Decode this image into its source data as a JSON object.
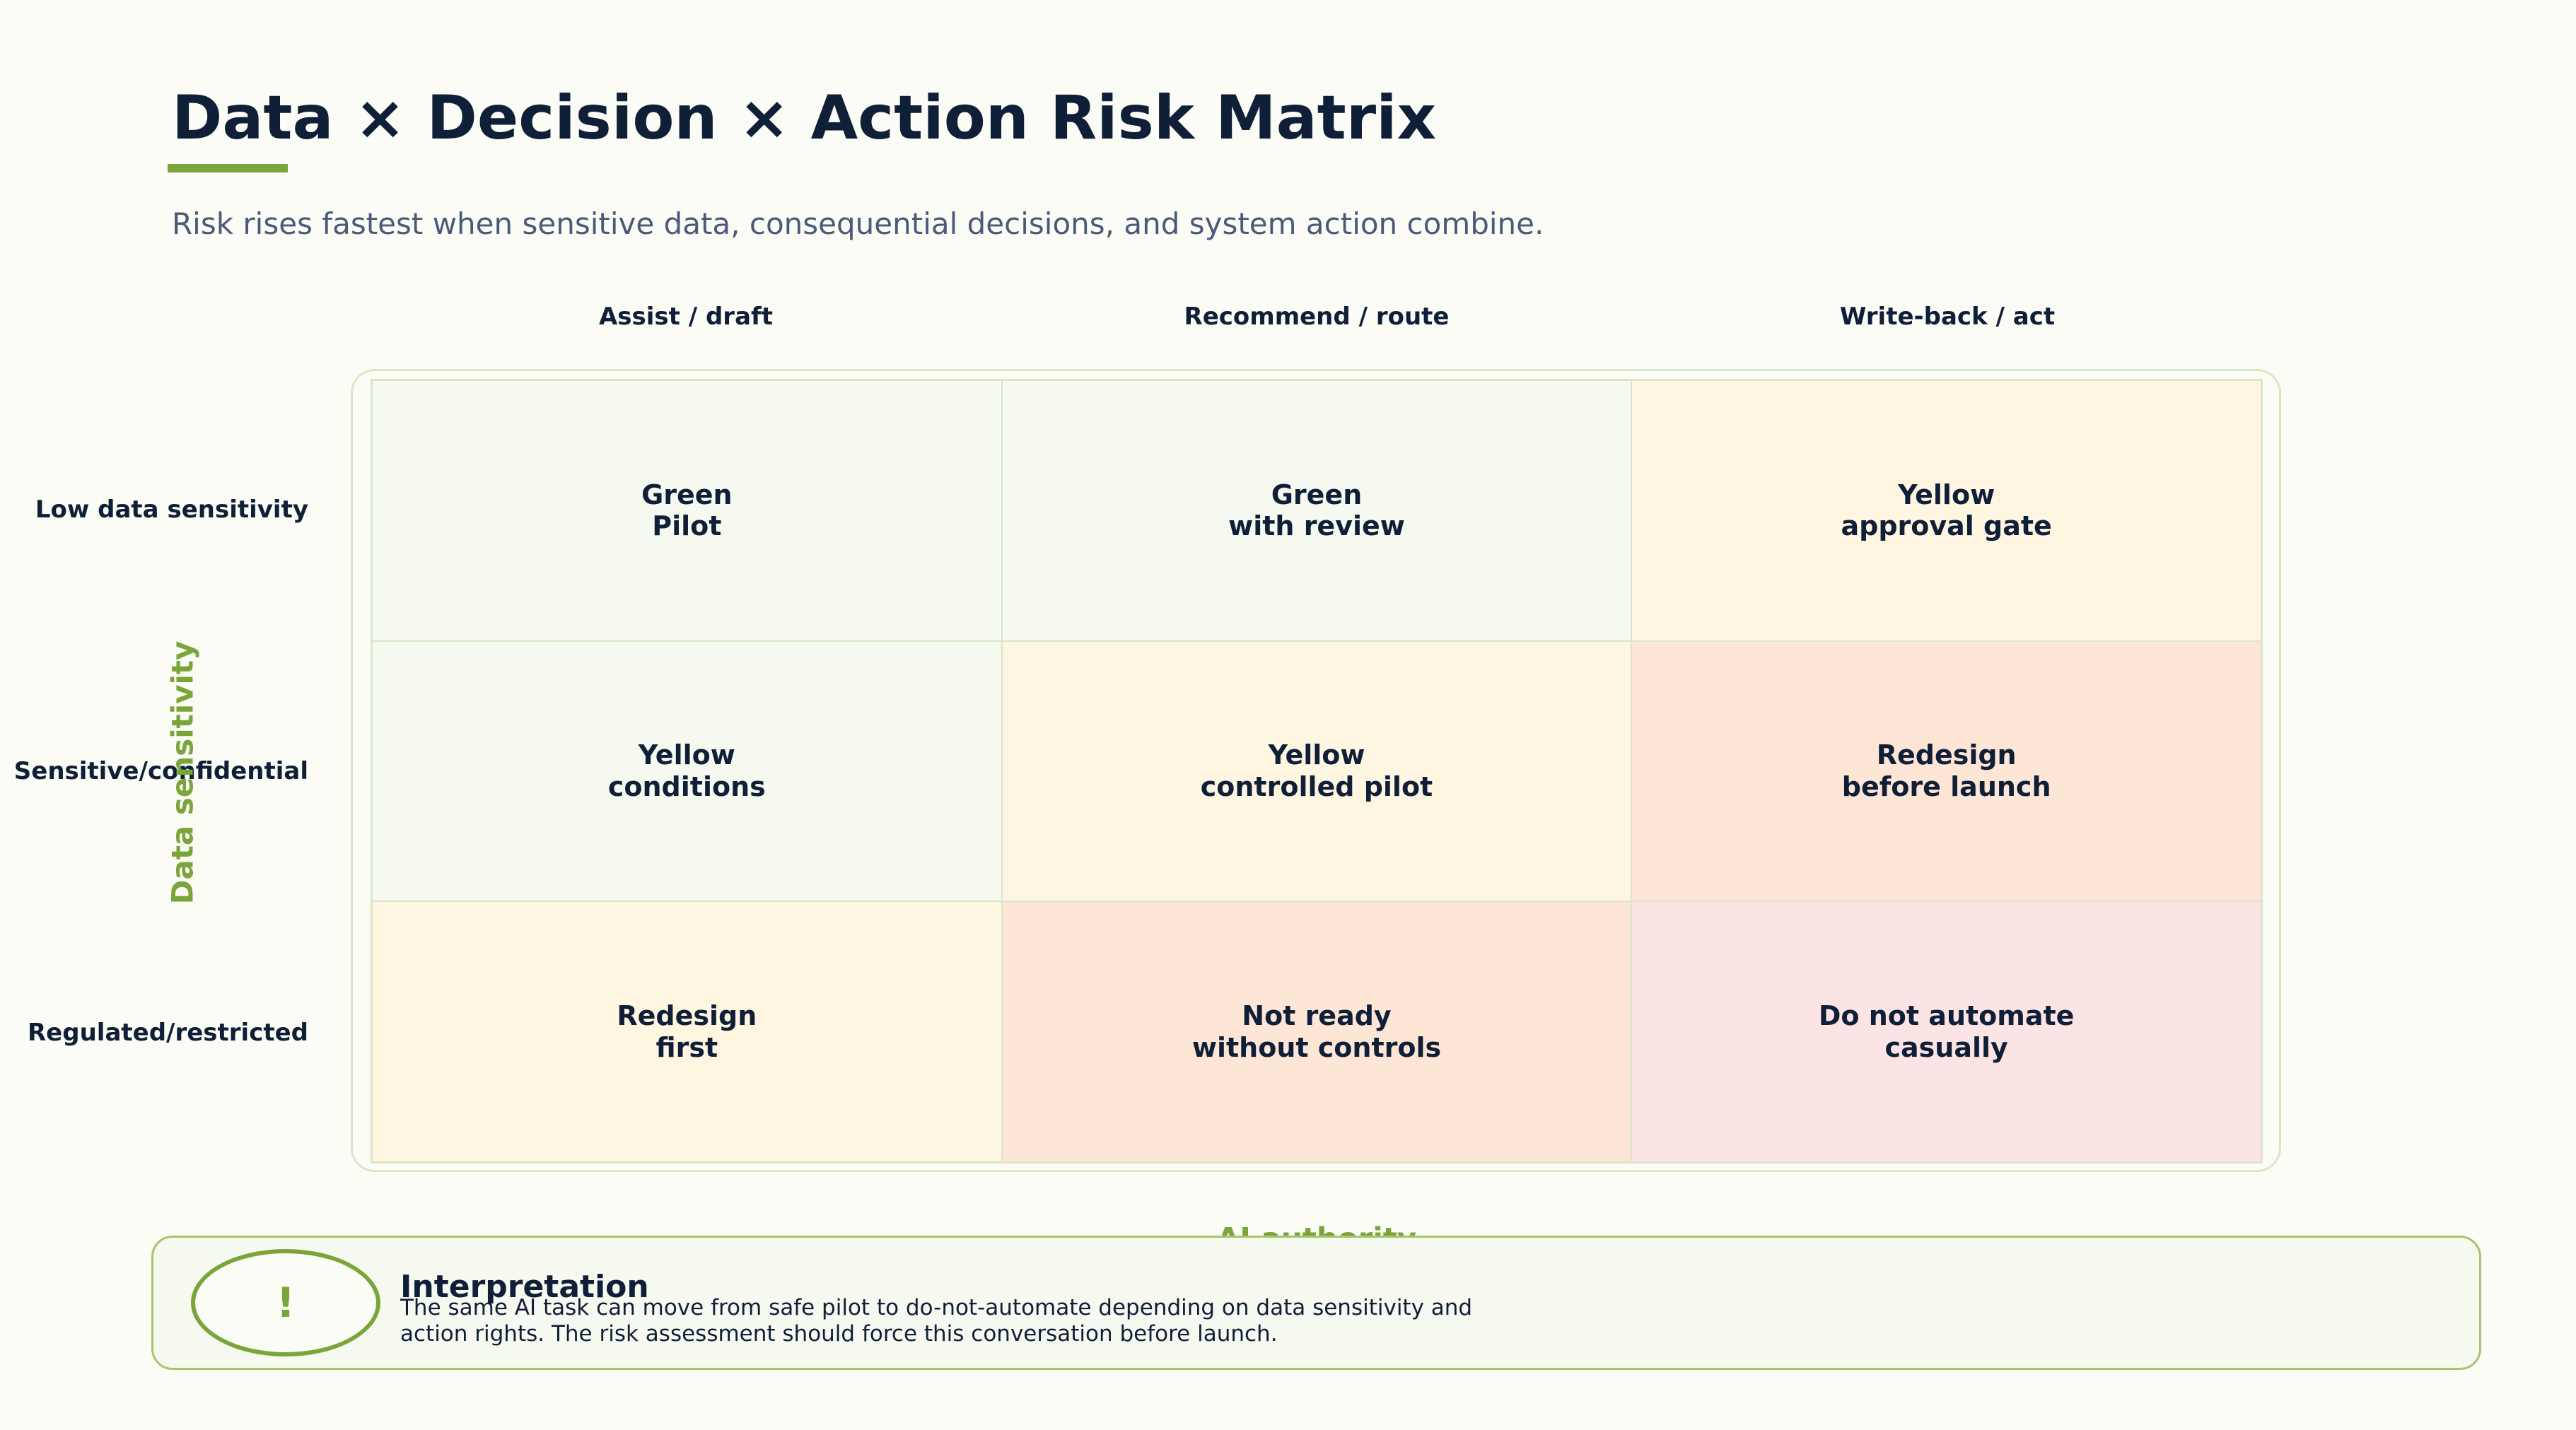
{
  "title": "Data × Decision × Action Risk Matrix",
  "subtitle": "Risk rises fastest when sensitive data, consequential decisions, and system action combine.",
  "axes": {
    "x_label": "AI authority",
    "y_label": "Data sensitivity"
  },
  "columns": [
    "Assist / draft",
    "Recommend / route",
    "Write-back / act"
  ],
  "rows": [
    "Low data sensitivity",
    "Sensitive/confidential",
    "Regulated/restricted"
  ],
  "cells": [
    [
      {
        "line1": "Green",
        "line2": "Pilot",
        "color": "#f6f9f0"
      },
      {
        "line1": "Green",
        "line2": "with review",
        "color": "#f6f9f0"
      },
      {
        "line1": "Yellow",
        "line2": "approval gate",
        "color": "#fef6e0"
      }
    ],
    [
      {
        "line1": "Yellow",
        "line2": "conditions",
        "color": "#f6f9f0"
      },
      {
        "line1": "Yellow",
        "line2": "controlled pilot",
        "color": "#fef6e0"
      },
      {
        "line1": "Redesign",
        "line2": "before launch",
        "color": "#fee6d6"
      }
    ],
    [
      {
        "line1": "Redesign",
        "line2": "first",
        "color": "#fef6e0"
      },
      {
        "line1": "Not ready",
        "line2": "without controls",
        "color": "#fee6d6"
      },
      {
        "line1": "Do not automate",
        "line2": "casually",
        "color": "#fce4e4"
      }
    ]
  ],
  "callout": {
    "icon_glyph": "!",
    "icon_name": "exclamation-icon",
    "title": "Interpretation",
    "body_line1": "The same AI task can move from safe pilot to do-not-automate depending on data sensitivity and",
    "body_line2": "action rights. The risk assessment should force this conversation before launch."
  },
  "colors": {
    "accent": "#7ba43a",
    "heading": "#101f38",
    "subtitle": "#4b5a78",
    "green_cell": "#f6f9f0",
    "yellow_cell": "#fef6e0",
    "orange_cell": "#fee6d6",
    "red_cell": "#fce4e4"
  }
}
